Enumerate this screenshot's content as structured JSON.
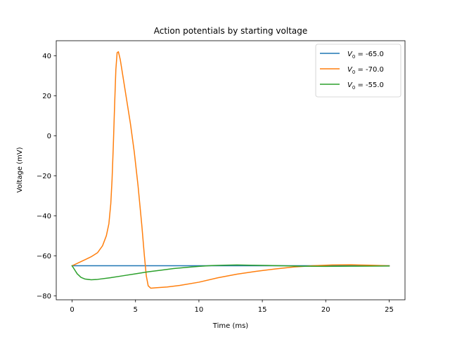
{
  "chart_data": {
    "type": "line",
    "title": "Action potentials by starting voltage",
    "xlabel": "Time (ms)",
    "ylabel": "Voltage (mV)",
    "xlim": [
      -1.25,
      26.25
    ],
    "ylim": [
      -82.0,
      47.5
    ],
    "xticks": [
      0,
      5,
      10,
      15,
      20,
      25
    ],
    "yticks": [
      -80,
      -60,
      -40,
      -20,
      0,
      20,
      40
    ],
    "grid": false,
    "legend_position": "upper right",
    "series": [
      {
        "name": "V0 = -65.0",
        "legend_prefix": "V",
        "legend_subscript": "0",
        "legend_value": " = -65.0",
        "color": "#1f77b4",
        "points": [
          [
            0,
            -65.0
          ],
          [
            5,
            -65.0
          ],
          [
            10,
            -65.0
          ],
          [
            15,
            -65.0
          ],
          [
            20,
            -65.0
          ],
          [
            25,
            -65.0
          ]
        ]
      },
      {
        "name": "V0 = -70.0",
        "legend_prefix": "V",
        "legend_subscript": "0",
        "legend_value": " = -70.0",
        "color": "#ff7f0e",
        "points": [
          [
            0,
            -65.0
          ],
          [
            0.5,
            -63.5
          ],
          [
            1.0,
            -62.0
          ],
          [
            1.5,
            -60.5
          ],
          [
            2.0,
            -58.5
          ],
          [
            2.4,
            -55.0
          ],
          [
            2.7,
            -50.0
          ],
          [
            2.9,
            -44.0
          ],
          [
            3.05,
            -34.0
          ],
          [
            3.15,
            -22.0
          ],
          [
            3.25,
            -5.0
          ],
          [
            3.35,
            15.0
          ],
          [
            3.45,
            33.0
          ],
          [
            3.55,
            41.5
          ],
          [
            3.65,
            42.0
          ],
          [
            3.8,
            38.0
          ],
          [
            4.0,
            30.0
          ],
          [
            4.3,
            18.0
          ],
          [
            4.6,
            6.0
          ],
          [
            4.9,
            -8.0
          ],
          [
            5.2,
            -25.0
          ],
          [
            5.5,
            -45.0
          ],
          [
            5.7,
            -60.0
          ],
          [
            5.85,
            -70.0
          ],
          [
            6.0,
            -75.0
          ],
          [
            6.2,
            -76.2
          ],
          [
            6.6,
            -76.0
          ],
          [
            7.5,
            -75.6
          ],
          [
            8.5,
            -74.8
          ],
          [
            10.0,
            -73.2
          ],
          [
            11.5,
            -71.0
          ],
          [
            13.0,
            -69.2
          ],
          [
            14.5,
            -67.8
          ],
          [
            16.0,
            -66.6
          ],
          [
            17.5,
            -65.6
          ],
          [
            19.0,
            -65.0
          ],
          [
            20.5,
            -64.6
          ],
          [
            22.0,
            -64.5
          ],
          [
            23.5,
            -64.7
          ],
          [
            25.0,
            -65.0
          ]
        ]
      },
      {
        "name": "V0 = -55.0",
        "legend_prefix": "V",
        "legend_subscript": "0",
        "legend_value": " = -55.0",
        "color": "#2ca02c",
        "points": [
          [
            0,
            -65.0
          ],
          [
            0.2,
            -67.0
          ],
          [
            0.4,
            -69.0
          ],
          [
            0.7,
            -70.8
          ],
          [
            1.0,
            -71.6
          ],
          [
            1.5,
            -72.0
          ],
          [
            2.0,
            -71.8
          ],
          [
            3.0,
            -71.0
          ],
          [
            4.0,
            -70.0
          ],
          [
            5.0,
            -69.0
          ],
          [
            6.0,
            -68.0
          ],
          [
            7.0,
            -67.2
          ],
          [
            8.0,
            -66.4
          ],
          [
            9.0,
            -65.8
          ],
          [
            10.0,
            -65.3
          ],
          [
            11.0,
            -64.9
          ],
          [
            12.0,
            -64.7
          ],
          [
            13.0,
            -64.6
          ],
          [
            14.0,
            -64.7
          ],
          [
            15.0,
            -64.8
          ],
          [
            16.5,
            -65.0
          ],
          [
            18.0,
            -65.2
          ],
          [
            20.0,
            -65.3
          ],
          [
            22.0,
            -65.2
          ],
          [
            25.0,
            -65.1
          ]
        ]
      }
    ]
  }
}
